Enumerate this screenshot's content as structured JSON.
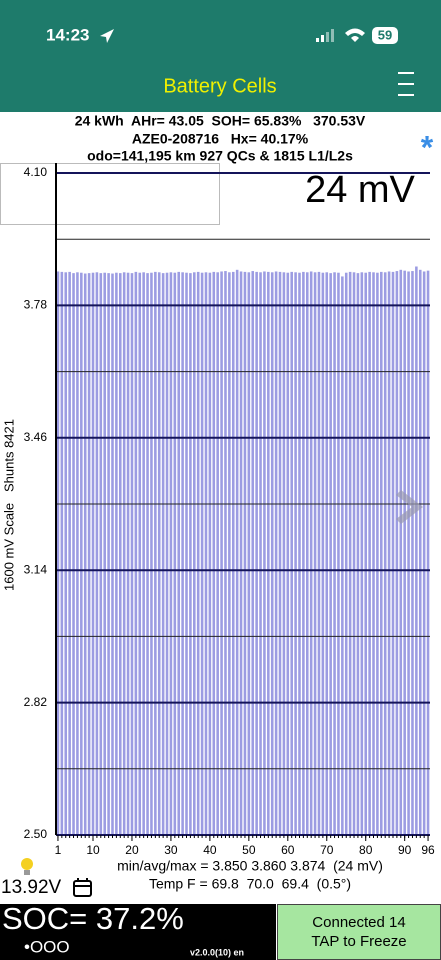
{
  "status_bar": {
    "time": "14:23",
    "battery": "59"
  },
  "header": {
    "title": "Battery Cells"
  },
  "info": {
    "line1": "24 kWh  AHr= 43.05  SOH= 65.83%   370.53V",
    "line2": "AZE0-208716   Hx= 40.17%",
    "line3": "odo=141,195 km 927 QCs & 1815 L1/L2s",
    "marker": "*"
  },
  "chart_data": {
    "type": "bar",
    "spread_label": "24 mV",
    "y_label": "1600 mV Scale   Shunts 8421",
    "color": "#9c9ce2",
    "grid": true,
    "x": [
      1,
      2,
      3,
      4,
      5,
      6,
      7,
      8,
      9,
      10,
      11,
      12,
      13,
      14,
      15,
      16,
      17,
      18,
      19,
      20,
      21,
      22,
      23,
      24,
      25,
      26,
      27,
      28,
      29,
      30,
      31,
      32,
      33,
      34,
      35,
      36,
      37,
      38,
      39,
      40,
      41,
      42,
      43,
      44,
      45,
      46,
      47,
      48,
      49,
      50,
      51,
      52,
      53,
      54,
      55,
      56,
      57,
      58,
      59,
      60,
      61,
      62,
      63,
      64,
      65,
      66,
      67,
      68,
      69,
      70,
      71,
      72,
      73,
      74,
      75,
      76,
      77,
      78,
      79,
      80,
      81,
      82,
      83,
      84,
      85,
      86,
      87,
      88,
      89,
      90,
      91,
      92,
      93,
      94,
      95,
      96
    ],
    "values": [
      3.862,
      3.861,
      3.86,
      3.861,
      3.858,
      3.86,
      3.859,
      3.857,
      3.858,
      3.859,
      3.86,
      3.858,
      3.859,
      3.858,
      3.857,
      3.859,
      3.858,
      3.86,
      3.859,
      3.858,
      3.861,
      3.859,
      3.86,
      3.858,
      3.859,
      3.861,
      3.86,
      3.858,
      3.859,
      3.86,
      3.859,
      3.861,
      3.86,
      3.859,
      3.858,
      3.86,
      3.861,
      3.859,
      3.86,
      3.859,
      3.861,
      3.86,
      3.862,
      3.863,
      3.86,
      3.861,
      3.866,
      3.862,
      3.861,
      3.86,
      3.863,
      3.861,
      3.86,
      3.862,
      3.861,
      3.86,
      3.862,
      3.861,
      3.86,
      3.859,
      3.861,
      3.86,
      3.859,
      3.861,
      3.86,
      3.862,
      3.86,
      3.861,
      3.859,
      3.86,
      3.858,
      3.86,
      3.859,
      3.85,
      3.859,
      3.861,
      3.86,
      3.858,
      3.86,
      3.859,
      3.861,
      3.86,
      3.859,
      3.861,
      3.86,
      3.862,
      3.861,
      3.863,
      3.866,
      3.864,
      3.862,
      3.863,
      3.874,
      3.866,
      3.862,
      3.864
    ],
    "xlim": [
      0.5,
      96.5
    ],
    "xticks": [
      1,
      10,
      20,
      30,
      40,
      50,
      60,
      70,
      80,
      90,
      96
    ],
    "ylim": [
      2.5,
      4.1
    ],
    "yticks": [
      {
        "value": 2.5,
        "label": "2.50"
      },
      2.82,
      3.14,
      3.46,
      3.78,
      {
        "value": 4.1,
        "label": "4.10"
      }
    ],
    "minor_yticks": [
      2.66,
      2.98,
      3.3,
      3.62,
      3.94
    ]
  },
  "stats": {
    "minavgmax": "min/avg/max = 3.850 3.860 3.874  (24 mV)",
    "temp": "Temp F = 69.8  70.0  69.4  (0.5°)",
    "voltage": "13.92V"
  },
  "footer": {
    "soc": "SOC= 37.2%",
    "dots": "•OOO",
    "version": "v2.0.0(10) en",
    "connected": "Connected 14",
    "freeze": "TAP to Freeze"
  }
}
